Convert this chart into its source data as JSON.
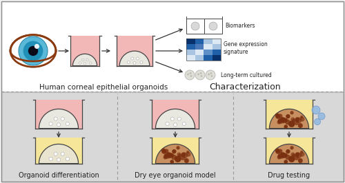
{
  "bg_color": "#f0f0f0",
  "top_panel_bg": "#ffffff",
  "bottom_panel_bg": "#dcdcdc",
  "pink_color": "#f2b8b8",
  "yellow_color": "#f5e699",
  "organoid_color": "#e8e8e0",
  "brown_spot_color": "#7a3010",
  "eye_brown": "#8B3A10",
  "eye_blue_outer": "#5ab8d8",
  "eye_blue_inner": "#2090b8",
  "top_label": "Human corneal epithelial organoids",
  "top_right_label": "Characterization",
  "biomarkers_label": "Biomarkers",
  "gene_expr_label": "Gene expression\nsignature",
  "longterm_label": "Long-term cultured",
  "bottom_labels": [
    "Organoid differentiation",
    "Dry eye organoid model",
    "Drug testing"
  ],
  "panel_border_color": "#444444",
  "dashed_border_color": "#999999",
  "arrow_color": "#333333",
  "text_color": "#222222",
  "font_size_main": 7.5,
  "font_size_small": 5.5,
  "font_size_charac": 9,
  "font_size_label": 7
}
